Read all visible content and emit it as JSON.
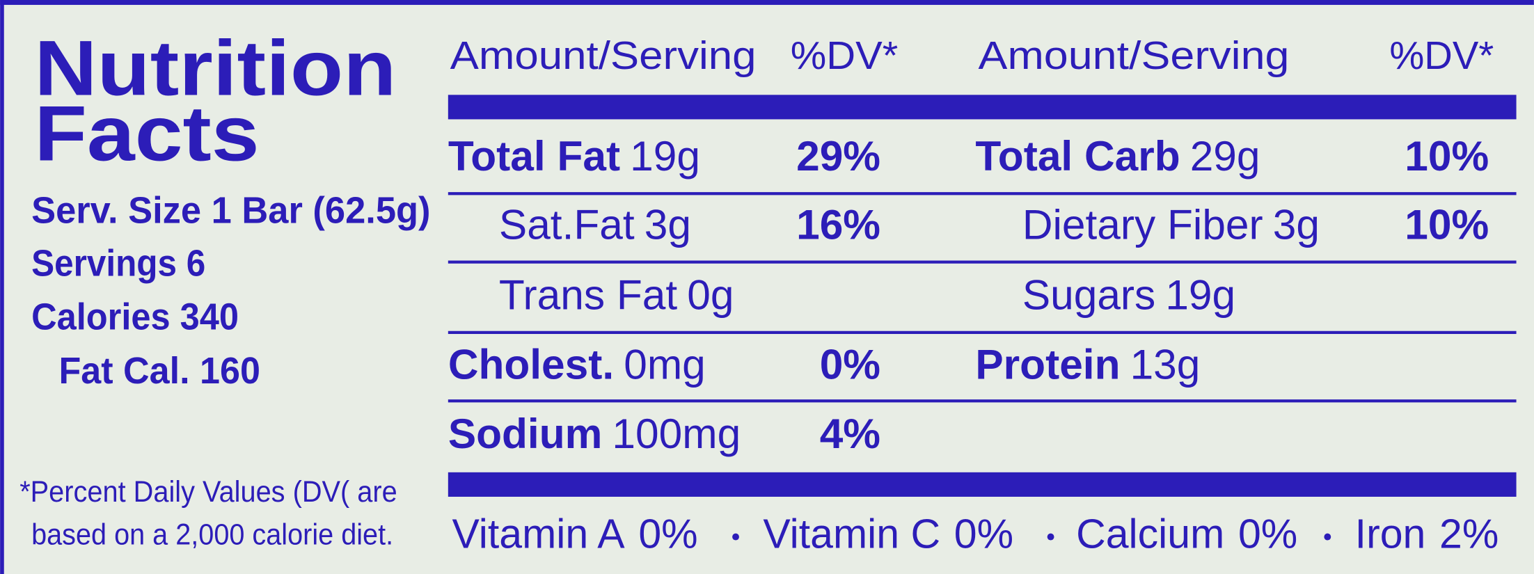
{
  "title_lines": [
    "Nutrition",
    "Facts"
  ],
  "serving_info": [
    "Serv. Size 1 Bar (62.5g)",
    "Servings 6",
    "Calories 340",
    "Fat Cal. 160"
  ],
  "footnote_lines": [
    "*Percent Daily Values (DV( are",
    "based on a 2,000 calorie diet."
  ],
  "header": [
    "Amount/Serving",
    "%DV*",
    "Amount/Serving",
    "%DV*"
  ],
  "left_nutrients": [
    {
      "name": "Total Fat",
      "amount": "19g",
      "dv": "29%"
    },
    {
      "name": "Sat.Fat",
      "amount": "3g",
      "dv": "16%",
      "sub": true
    },
    {
      "name": "Trans Fat",
      "amount": "0g",
      "sub": true
    },
    {
      "name": "Cholest.",
      "amount": "0mg",
      "dv": "0%"
    },
    {
      "name": "Sodium",
      "amount": "100mg",
      "dv": "4%"
    }
  ],
  "right_nutrients": [
    {
      "name": "Total Carb",
      "amount": "29g",
      "dv": "10%"
    },
    {
      "name": "Dietary Fiber",
      "amount": "3g",
      "dv": "10%",
      "sub": true
    },
    {
      "name": "Sugars",
      "amount": "19g",
      "sub": true
    },
    {
      "name": "Protein",
      "amount": "13g"
    }
  ],
  "vitamins": [
    {
      "name": "Vitamin A",
      "dv": "0%"
    },
    {
      "name": "Vitamin C",
      "dv": "0%"
    },
    {
      "name": "Calcium",
      "dv": "0%"
    },
    {
      "name": "Iron",
      "dv": "2%"
    }
  ]
}
